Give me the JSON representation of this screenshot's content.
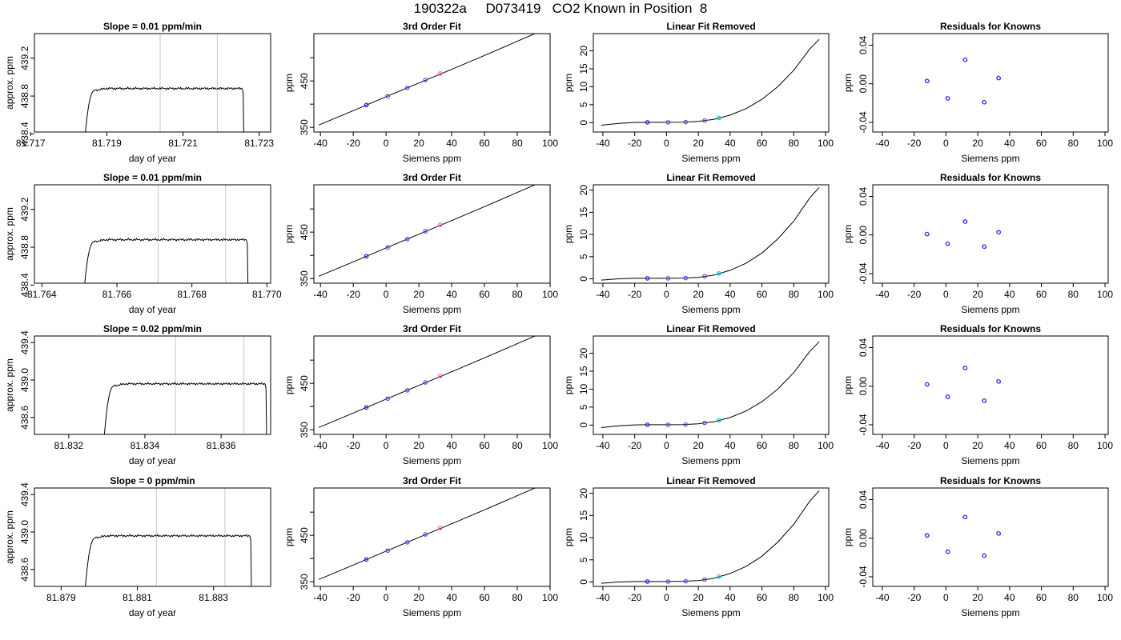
{
  "header": {
    "title": "190322a     D073419   CO2 Known in Position  8"
  },
  "colors": {
    "axis": "#000000",
    "curve": "#000000",
    "vline": "#c8c8c8",
    "point_dark": "#1a1aff",
    "point_mid": "#7a33ff",
    "point_pink": "#ff55c8",
    "point_cyan": "#00c8ff"
  },
  "chart_data": [
    {
      "type": "line",
      "title": "Slope =  0.01  ppm/min",
      "xlabel": "day of year",
      "ylabel": "approx. ppm",
      "xlim": [
        81.7171,
        81.7233
      ],
      "ylim": [
        438.42,
        439.46
      ],
      "xticks": [
        81.717,
        81.719,
        81.721,
        81.723
      ],
      "xtick_labels": [
        "81.717",
        "81.719",
        "81.721",
        "81.723"
      ],
      "yticks": [
        438.4,
        438.8,
        439.2
      ],
      "ytick_labels": [
        "438.4",
        "438.8",
        "439.2"
      ],
      "vlines": [
        81.7204,
        81.7219
      ],
      "plateau": 438.88,
      "start": 81.7184,
      "end": 81.7226
    },
    {
      "type": "line",
      "title": "3rd Order Fit",
      "xlabel": "Siemens ppm",
      "ylabel": "ppm",
      "xlim": [
        -44,
        100
      ],
      "ylim": [
        340,
        552
      ],
      "xticks": [
        -40,
        -20,
        0,
        20,
        40,
        60,
        80,
        100
      ],
      "xtick_labels": [
        "-40",
        "-20",
        "0",
        "20",
        "40",
        "60",
        "80",
        "100"
      ],
      "yticks": [
        350,
        400,
        450,
        500
      ],
      "ytick_labels": [
        "350",
        "",
        "450",
        ""
      ],
      "curve_x": [
        -41,
        -20,
        0,
        20,
        40,
        60,
        80,
        96
      ],
      "curve_y": [
        355,
        386,
        416,
        445.5,
        475,
        505,
        535.5,
        560
      ],
      "points": [
        {
          "x": -12,
          "y": 398
        },
        {
          "x": 1,
          "y": 417
        },
        {
          "x": 13,
          "y": 435
        },
        {
          "x": 24,
          "y": 452
        },
        {
          "x": 33,
          "y": 466
        }
      ]
    },
    {
      "type": "line",
      "title": "Linear Fit Removed",
      "xlabel": "Siemens ppm",
      "ylabel": "ppm",
      "xlim": [
        -46,
        102
      ],
      "ylim": [
        -2.6,
        24.8
      ],
      "xticks": [
        -40,
        -20,
        0,
        20,
        40,
        60,
        80,
        100
      ],
      "xtick_labels": [
        "-40",
        "-20",
        "0",
        "20",
        "40",
        "60",
        "80",
        "100"
      ],
      "yticks": [
        0,
        5,
        10,
        15,
        20
      ],
      "ytick_labels": [
        "0",
        "5",
        "10",
        "15",
        "20"
      ],
      "curve_x": [
        -41,
        -30,
        -20,
        -10,
        0,
        10,
        20,
        30,
        40,
        50,
        60,
        70,
        80,
        90,
        96
      ],
      "curve_y": [
        -0.7,
        -0.2,
        0.05,
        0.1,
        0.1,
        0.15,
        0.35,
        0.95,
        2.1,
        3.9,
        6.5,
        10,
        14.6,
        20.5,
        23.2
      ],
      "points": [
        {
          "x": -12,
          "y": 0.1
        },
        {
          "x": 1,
          "y": 0.1
        },
        {
          "x": 12,
          "y": 0.15
        },
        {
          "x": 24,
          "y": 0.6
        },
        {
          "x": 33,
          "y": 1.3
        }
      ]
    },
    {
      "type": "scatter",
      "title": "Residuals for Knowns",
      "xlabel": "Siemens ppm",
      "ylabel": "ppm",
      "xlim": [
        -46,
        102
      ],
      "ylim": [
        -0.05,
        0.052
      ],
      "xticks": [
        -40,
        -20,
        0,
        20,
        40,
        60,
        80,
        100
      ],
      "xtick_labels": [
        "-40",
        "-20",
        "0",
        "20",
        "40",
        "60",
        "80",
        "100"
      ],
      "yticks": [
        -0.04,
        0,
        0.04
      ],
      "ytick_labels": [
        "-0.04",
        "0.00",
        "0.04"
      ],
      "points": [
        {
          "x": -12,
          "y": 0.003
        },
        {
          "x": 1,
          "y": -0.015
        },
        {
          "x": 12,
          "y": 0.025
        },
        {
          "x": 24,
          "y": -0.019
        },
        {
          "x": 33,
          "y": 0.006
        }
      ]
    },
    {
      "type": "line",
      "title": "Slope =  0.01  ppm/min",
      "xlabel": "day of year",
      "ylabel": "approx. ppm",
      "xlim": [
        81.7638,
        81.7701
      ],
      "ylim": [
        438.42,
        439.46
      ],
      "xticks": [
        81.764,
        81.766,
        81.768,
        81.77
      ],
      "xtick_labels": [
        "81.764",
        "81.766",
        "81.768",
        "81.770"
      ],
      "yticks": [
        438.4,
        438.8,
        439.2
      ],
      "ytick_labels": [
        "438.4",
        "438.8",
        "439.2"
      ],
      "vlines": [
        81.7671,
        81.7689
      ],
      "plateau": 438.88,
      "start": 81.7651,
      "end": 81.7695
    },
    {
      "type": "line",
      "title": "3rd Order Fit",
      "xlabel": "Siemens ppm",
      "ylabel": "ppm",
      "xlim": [
        -44,
        100
      ],
      "ylim": [
        340,
        552
      ],
      "xticks": [
        -40,
        -20,
        0,
        20,
        40,
        60,
        80,
        100
      ],
      "xtick_labels": [
        "-40",
        "-20",
        "0",
        "20",
        "40",
        "60",
        "80",
        "100"
      ],
      "yticks": [
        350,
        400,
        450,
        500
      ],
      "ytick_labels": [
        "350",
        "",
        "450",
        ""
      ],
      "curve_x": [
        -41,
        -20,
        0,
        20,
        40,
        60,
        80,
        96
      ],
      "curve_y": [
        355,
        386,
        416,
        445.5,
        475,
        505,
        535.5,
        560
      ],
      "points": [
        {
          "x": -12,
          "y": 398
        },
        {
          "x": 1,
          "y": 417
        },
        {
          "x": 13,
          "y": 435
        },
        {
          "x": 24,
          "y": 452
        },
        {
          "x": 33,
          "y": 466
        }
      ]
    },
    {
      "type": "line",
      "title": "Linear Fit Removed",
      "xlabel": "Siemens ppm",
      "ylabel": "ppm",
      "xlim": [
        -46,
        102
      ],
      "ylim": [
        -1.0,
        21.2
      ],
      "xticks": [
        -40,
        -20,
        0,
        20,
        40,
        60,
        80,
        100
      ],
      "xtick_labels": [
        "-40",
        "-20",
        "0",
        "20",
        "40",
        "60",
        "80",
        "100"
      ],
      "yticks": [
        0,
        5,
        10,
        15,
        20
      ],
      "ytick_labels": [
        "0",
        "5",
        "10",
        "15",
        "20"
      ],
      "curve_x": [
        -41,
        -30,
        -20,
        -10,
        0,
        10,
        20,
        30,
        40,
        50,
        60,
        70,
        80,
        90,
        96
      ],
      "curve_y": [
        -0.3,
        0,
        0.1,
        0.1,
        0.1,
        0.15,
        0.3,
        0.85,
        1.9,
        3.5,
        5.8,
        9,
        13,
        18.2,
        20.6
      ],
      "points": [
        {
          "x": -12,
          "y": 0.1
        },
        {
          "x": 1,
          "y": 0.1
        },
        {
          "x": 12,
          "y": 0.15
        },
        {
          "x": 24,
          "y": 0.55
        },
        {
          "x": 33,
          "y": 1.2
        }
      ]
    },
    {
      "type": "scatter",
      "title": "Residuals for Knowns",
      "xlabel": "Siemens ppm",
      "ylabel": "ppm",
      "xlim": [
        -46,
        102
      ],
      "ylim": [
        -0.05,
        0.052
      ],
      "xticks": [
        -40,
        -20,
        0,
        20,
        40,
        60,
        80,
        100
      ],
      "xtick_labels": [
        "-40",
        "-20",
        "0",
        "20",
        "40",
        "60",
        "80",
        "100"
      ],
      "yticks": [
        -0.04,
        0,
        0.04
      ],
      "ytick_labels": [
        "-0.04",
        "0.00",
        "0.04"
      ],
      "points": [
        {
          "x": -12,
          "y": 0.001
        },
        {
          "x": 1,
          "y": -0.009
        },
        {
          "x": 12,
          "y": 0.014
        },
        {
          "x": 24,
          "y": -0.012
        },
        {
          "x": 33,
          "y": 0.003
        }
      ]
    },
    {
      "type": "line",
      "title": "Slope =  0.02  ppm/min",
      "xlabel": "day of year",
      "ylabel": "approx. ppm",
      "xlim": [
        81.8311,
        81.8373
      ],
      "ylim": [
        438.42,
        439.47
      ],
      "xticks": [
        81.832,
        81.834,
        81.836
      ],
      "xtick_labels": [
        "81.832",
        "81.834",
        "81.836"
      ],
      "yticks": [
        438.6,
        439.0,
        439.4
      ],
      "ytick_labels": [
        "438.6",
        "439.0",
        "439.4"
      ],
      "vlines": [
        81.8348,
        81.8366
      ],
      "plateau": 438.96,
      "start": 81.8329,
      "end": 81.8372
    },
    {
      "type": "line",
      "title": "3rd Order Fit",
      "xlabel": "Siemens ppm",
      "ylabel": "ppm",
      "xlim": [
        -44,
        100
      ],
      "ylim": [
        340,
        552
      ],
      "xticks": [
        -40,
        -20,
        0,
        20,
        40,
        60,
        80,
        100
      ],
      "xtick_labels": [
        "-40",
        "-20",
        "0",
        "20",
        "40",
        "60",
        "80",
        "100"
      ],
      "yticks": [
        350,
        400,
        450,
        500
      ],
      "ytick_labels": [
        "350",
        "",
        "450",
        ""
      ],
      "curve_x": [
        -41,
        -20,
        0,
        20,
        40,
        60,
        80,
        96
      ],
      "curve_y": [
        355,
        386,
        416,
        445.5,
        475,
        505,
        535.5,
        560
      ],
      "points": [
        {
          "x": -12,
          "y": 398
        },
        {
          "x": 1,
          "y": 417
        },
        {
          "x": 13,
          "y": 435
        },
        {
          "x": 24,
          "y": 452
        },
        {
          "x": 33,
          "y": 466
        }
      ]
    },
    {
      "type": "line",
      "title": "Linear Fit Removed",
      "xlabel": "Siemens ppm",
      "ylabel": "ppm",
      "xlim": [
        -46,
        102
      ],
      "ylim": [
        -2.6,
        24.8
      ],
      "xticks": [
        -40,
        -20,
        0,
        20,
        40,
        60,
        80,
        100
      ],
      "xtick_labels": [
        "-40",
        "-20",
        "0",
        "20",
        "40",
        "60",
        "80",
        "100"
      ],
      "yticks": [
        0,
        5,
        10,
        15,
        20
      ],
      "ytick_labels": [
        "0",
        "5",
        "10",
        "15",
        "20"
      ],
      "curve_x": [
        -41,
        -30,
        -20,
        -10,
        0,
        10,
        20,
        30,
        40,
        50,
        60,
        70,
        80,
        90,
        96
      ],
      "curve_y": [
        -0.7,
        -0.2,
        0.05,
        0.1,
        0.1,
        0.15,
        0.35,
        0.95,
        2.1,
        3.9,
        6.5,
        10,
        14.6,
        20.5,
        23.2
      ],
      "points": [
        {
          "x": -12,
          "y": 0.1
        },
        {
          "x": 1,
          "y": 0.1
        },
        {
          "x": 12,
          "y": 0.15
        },
        {
          "x": 24,
          "y": 0.6
        },
        {
          "x": 33,
          "y": 1.3
        }
      ]
    },
    {
      "type": "scatter",
      "title": "Residuals for Knowns",
      "xlabel": "Siemens ppm",
      "ylabel": "ppm",
      "xlim": [
        -46,
        102
      ],
      "ylim": [
        -0.05,
        0.052
      ],
      "xticks": [
        -40,
        -20,
        0,
        20,
        40,
        60,
        80,
        100
      ],
      "xtick_labels": [
        "-40",
        "-20",
        "0",
        "20",
        "40",
        "60",
        "80",
        "100"
      ],
      "yticks": [
        -0.04,
        0,
        0.04
      ],
      "ytick_labels": [
        "-0.04",
        "0.00",
        "0.04"
      ],
      "points": [
        {
          "x": -12,
          "y": 0.002
        },
        {
          "x": 1,
          "y": -0.011
        },
        {
          "x": 12,
          "y": 0.019
        },
        {
          "x": 24,
          "y": -0.015
        },
        {
          "x": 33,
          "y": 0.005
        }
      ]
    },
    {
      "type": "line",
      "title": "Slope =  0  ppm/min",
      "xlabel": "day of year",
      "ylabel": "approx. ppm",
      "xlim": [
        81.8783,
        81.8845
      ],
      "ylim": [
        438.42,
        439.47
      ],
      "xticks": [
        81.879,
        81.881,
        81.883
      ],
      "xtick_labels": [
        "81.879",
        "81.881",
        "81.883"
      ],
      "yticks": [
        438.6,
        439.0,
        439.4
      ],
      "ytick_labels": [
        "438.6",
        "439.0",
        "439.4"
      ],
      "vlines": [
        81.8815,
        81.8833
      ],
      "plateau": 438.96,
      "start": 81.8796,
      "end": 81.884
    },
    {
      "type": "line",
      "title": "3rd Order Fit",
      "xlabel": "Siemens ppm",
      "ylabel": "ppm",
      "xlim": [
        -44,
        100
      ],
      "ylim": [
        340,
        552
      ],
      "xticks": [
        -40,
        -20,
        0,
        20,
        40,
        60,
        80,
        100
      ],
      "xtick_labels": [
        "-40",
        "-20",
        "0",
        "20",
        "40",
        "60",
        "80",
        "100"
      ],
      "yticks": [
        350,
        400,
        450,
        500
      ],
      "ytick_labels": [
        "350",
        "",
        "450",
        ""
      ],
      "curve_x": [
        -41,
        -20,
        0,
        20,
        40,
        60,
        80,
        96
      ],
      "curve_y": [
        355,
        386,
        416,
        445.5,
        475,
        505,
        535.5,
        560
      ],
      "points": [
        {
          "x": -12,
          "y": 398
        },
        {
          "x": 1,
          "y": 417
        },
        {
          "x": 13,
          "y": 435
        },
        {
          "x": 24,
          "y": 452
        },
        {
          "x": 33,
          "y": 466
        }
      ]
    },
    {
      "type": "line",
      "title": "Linear Fit Removed",
      "xlabel": "Siemens ppm",
      "ylabel": "ppm",
      "xlim": [
        -46,
        102
      ],
      "ylim": [
        -1.0,
        21.2
      ],
      "xticks": [
        -40,
        -20,
        0,
        20,
        40,
        60,
        80,
        100
      ],
      "xtick_labels": [
        "-40",
        "-20",
        "0",
        "20",
        "40",
        "60",
        "80",
        "100"
      ],
      "yticks": [
        0,
        5,
        10,
        15,
        20
      ],
      "ytick_labels": [
        "0",
        "5",
        "10",
        "15",
        "20"
      ],
      "curve_x": [
        -41,
        -30,
        -20,
        -10,
        0,
        10,
        20,
        30,
        40,
        50,
        60,
        70,
        80,
        90,
        96
      ],
      "curve_y": [
        -0.3,
        0,
        0.1,
        0.1,
        0.1,
        0.15,
        0.3,
        0.85,
        1.9,
        3.5,
        5.8,
        9,
        13,
        18.2,
        20.6
      ],
      "points": [
        {
          "x": -12,
          "y": 0.1
        },
        {
          "x": 1,
          "y": 0.1
        },
        {
          "x": 12,
          "y": 0.15
        },
        {
          "x": 24,
          "y": 0.55
        },
        {
          "x": 33,
          "y": 1.2
        }
      ]
    },
    {
      "type": "scatter",
      "title": "Residuals for Knowns",
      "xlabel": "Siemens ppm",
      "ylabel": "ppm",
      "xlim": [
        -46,
        102
      ],
      "ylim": [
        -0.05,
        0.052
      ],
      "xticks": [
        -40,
        -20,
        0,
        20,
        40,
        60,
        80,
        100
      ],
      "xtick_labels": [
        "-40",
        "-20",
        "0",
        "20",
        "40",
        "60",
        "80",
        "100"
      ],
      "yticks": [
        -0.04,
        0,
        0.04
      ],
      "ytick_labels": [
        "-0.04",
        "0.00",
        "0.04"
      ],
      "points": [
        {
          "x": -12,
          "y": 0.003
        },
        {
          "x": 1,
          "y": -0.014
        },
        {
          "x": 12,
          "y": 0.022
        },
        {
          "x": 24,
          "y": -0.018
        },
        {
          "x": 33,
          "y": 0.005
        }
      ]
    }
  ]
}
